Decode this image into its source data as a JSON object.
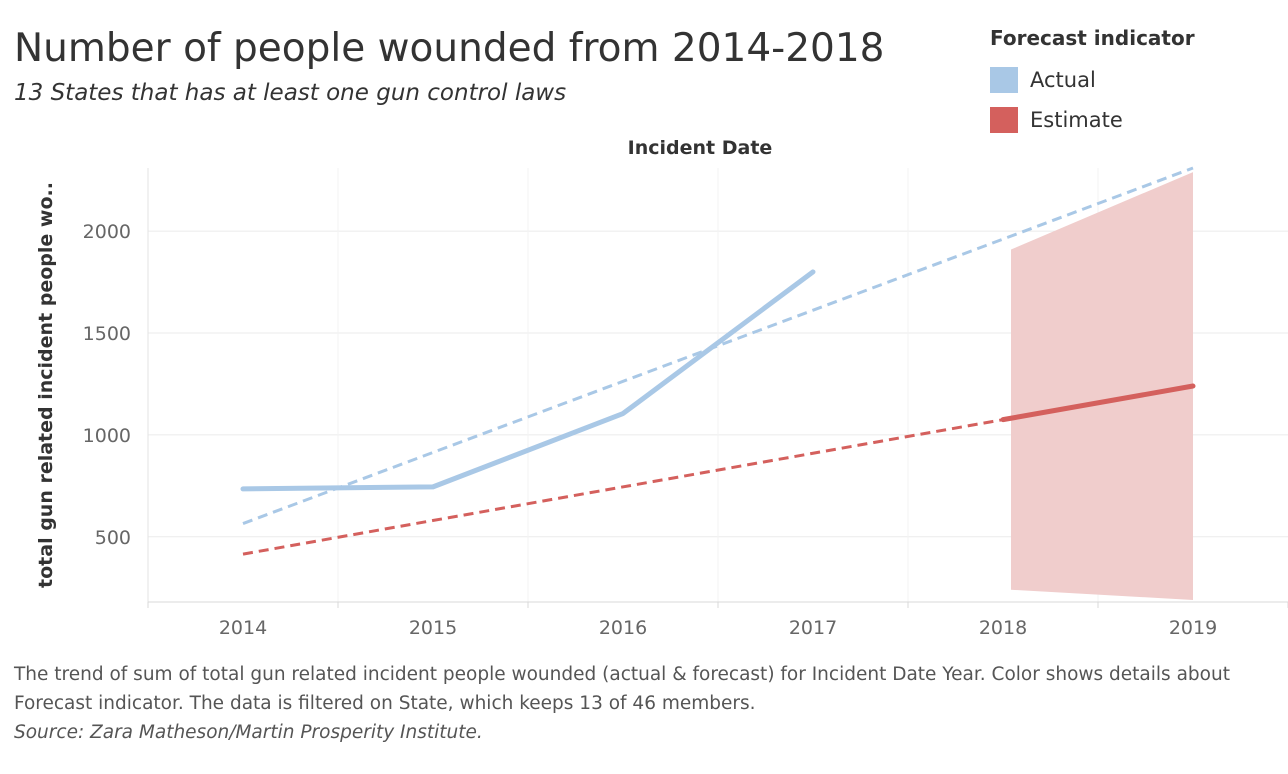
{
  "header": {
    "title": "Number of people wounded from 2014-2018",
    "subtitle": "13 States that has at least one gun control laws"
  },
  "legend": {
    "title": "Forecast indicator",
    "items": [
      {
        "label": "Actual",
        "color": "#a9c8e6"
      },
      {
        "label": "Estimate",
        "color": "#d4605d"
      }
    ]
  },
  "chart_data": {
    "type": "line",
    "xlabel": "Incident Date",
    "ylabel": "total gun related incident people wo..",
    "categories": [
      "2014",
      "2015",
      "2016",
      "2017",
      "2018",
      "2019"
    ],
    "yticks": [
      500,
      1000,
      1500,
      2000
    ],
    "ylim": [
      180,
      2310
    ],
    "grid": true,
    "series": [
      {
        "name": "Actual",
        "color": "#a9c8e6",
        "style": "solid",
        "x": [
          2014,
          2015,
          2016,
          2017
        ],
        "y": [
          735,
          745,
          1105,
          1800
        ]
      },
      {
        "name": "Estimate",
        "color": "#d4605d",
        "style": "solid",
        "x": [
          2018,
          2019
        ],
        "y": [
          1075,
          1240
        ]
      }
    ],
    "trend_lines": [
      {
        "color": "#a9c8e6",
        "style": "dashed",
        "x": [
          2014,
          2019
        ],
        "y": [
          565,
          2310
        ]
      },
      {
        "color": "#d4605d",
        "style": "dashed",
        "x": [
          2014,
          2018
        ],
        "y": [
          415,
          1075
        ]
      }
    ],
    "forecast_band": {
      "color": "#f0cdcc",
      "x": [
        2018,
        2019
      ],
      "upper": [
        1910,
        2290
      ],
      "lower": [
        240,
        190
      ]
    }
  },
  "caption": {
    "text": "The trend of sum of total gun related incident people wounded (actual & forecast)  for Incident Date Year.  Color shows details about Forecast indicator. The data is filtered on State, which keeps 13 of 46 members.",
    "source": "Source: Zara Matheson/Martin Prosperity Institute."
  }
}
